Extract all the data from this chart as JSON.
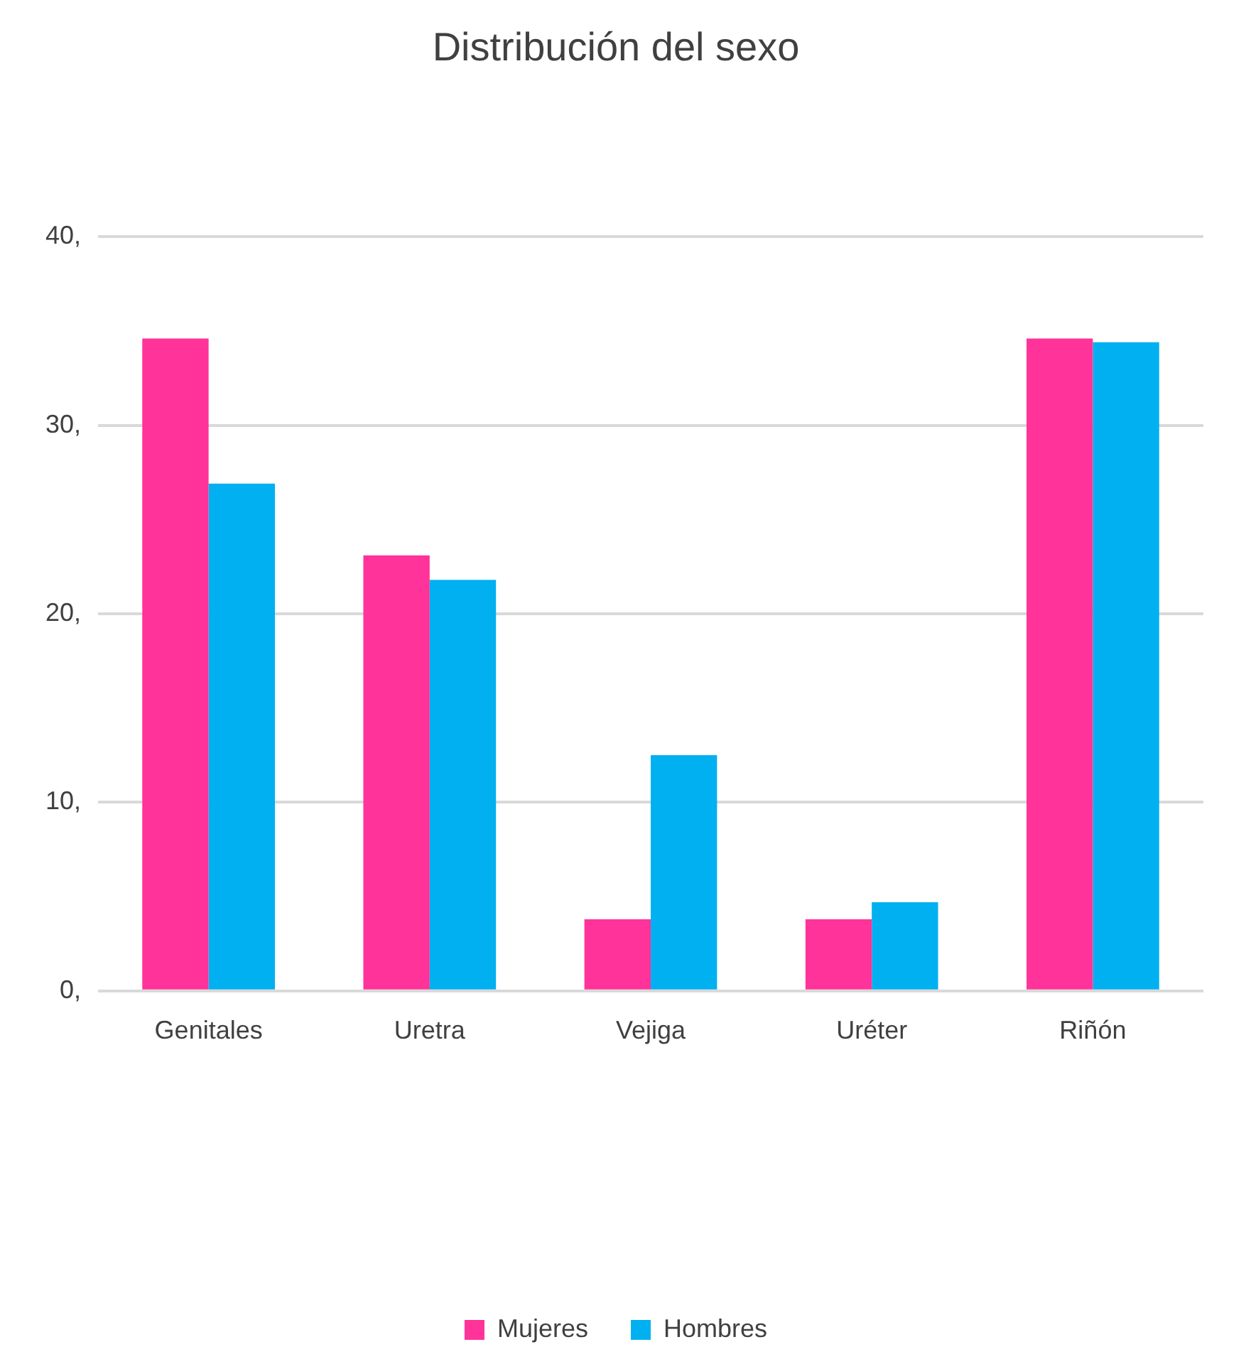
{
  "chart_data": {
    "type": "bar",
    "title": "Distribución del sexo",
    "categories": [
      "Genitales",
      "Uretra",
      "Vejiga",
      "Uréter",
      "Riñón"
    ],
    "series": [
      {
        "name": "Mujeres",
        "color": "#ff3399",
        "values": [
          34.6,
          23.1,
          3.8,
          3.8,
          34.6
        ]
      },
      {
        "name": "Hombres",
        "color": "#00b0f0",
        "values": [
          26.9,
          21.8,
          12.5,
          4.7,
          34.4
        ]
      }
    ],
    "ylim": [
      0,
      40
    ],
    "yticks": [
      {
        "value": 0,
        "label": "0,"
      },
      {
        "value": 10,
        "label": "10,"
      },
      {
        "value": 20,
        "label": "20,"
      },
      {
        "value": 30,
        "label": "30,"
      },
      {
        "value": 40,
        "label": "40,"
      }
    ],
    "grid": "y",
    "legend": "bottom"
  }
}
